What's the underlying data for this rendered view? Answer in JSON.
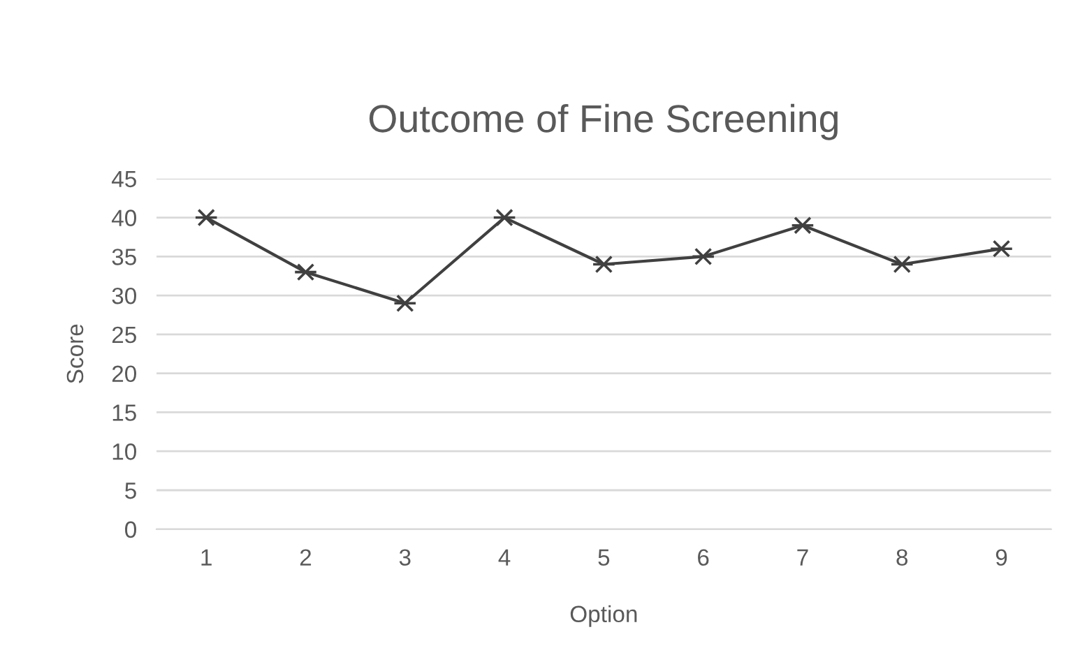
{
  "chart_data": {
    "type": "line",
    "title": "Outcome of Fine Screening",
    "xlabel": "Option",
    "ylabel": "Score",
    "categories": [
      "1",
      "2",
      "3",
      "4",
      "5",
      "6",
      "7",
      "8",
      "9"
    ],
    "series": [
      {
        "color": "#404040",
        "values": [
          40,
          33,
          29,
          40,
          34,
          35,
          39,
          34,
          36
        ]
      }
    ],
    "ylim": [
      0,
      45
    ],
    "yticks": [
      0,
      5,
      10,
      15,
      20,
      25,
      30,
      35,
      40,
      45
    ],
    "grid": "y",
    "legend": false,
    "marker": "cross",
    "line_style": "solid"
  }
}
